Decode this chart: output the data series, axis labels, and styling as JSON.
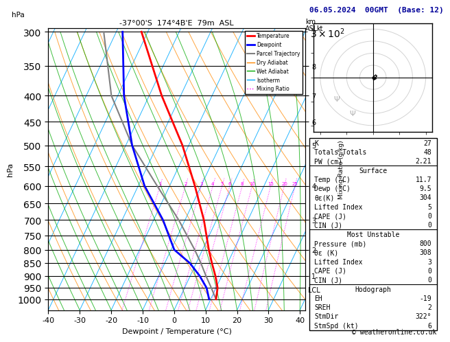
{
  "title_left": "-37°00'S  174°4B'E  79m  ASL",
  "title_right": "06.05.2024  00GMT  (Base: 12)",
  "xlabel": "Dewpoint / Temperature (°C)",
  "ylabel_left": "hPa",
  "pressure_ticks": [
    300,
    350,
    400,
    450,
    500,
    550,
    600,
    650,
    700,
    750,
    800,
    850,
    900,
    950,
    1000
  ],
  "xlim": [
    -40,
    40
  ],
  "temp_profile_p": [
    1000,
    950,
    900,
    850,
    800,
    700,
    600,
    500,
    400,
    300
  ],
  "temp_profile_T": [
    11.7,
    10.5,
    8.0,
    5.0,
    2.0,
    -4.0,
    -12.0,
    -22.0,
    -36.0,
    -52.0
  ],
  "dewp_profile_p": [
    1000,
    950,
    900,
    850,
    800,
    700,
    600,
    500,
    400,
    300
  ],
  "dewp_profile_T": [
    9.5,
    7.0,
    3.0,
    -2.0,
    -9.0,
    -17.0,
    -28.0,
    -38.0,
    -48.0,
    -58.0
  ],
  "parcel_p": [
    1000,
    950,
    900,
    850,
    800,
    700,
    600,
    500,
    400,
    300
  ],
  "parcel_T": [
    11.7,
    8.5,
    5.0,
    1.5,
    -2.5,
    -12.0,
    -24.0,
    -38.0,
    -52.0,
    -64.0
  ],
  "lcl_pressure": 960,
  "temp_color": "#ff0000",
  "dewp_color": "#0000ff",
  "parcel_color": "#808080",
  "dry_adiabat_color": "#ff8800",
  "wet_adiabat_color": "#00aa00",
  "isotherm_color": "#00aaff",
  "mixing_ratio_color": "#ff00ff",
  "km_ticks": [
    1,
    2,
    3,
    4,
    5,
    6,
    7,
    8
  ],
  "km_pressures": [
    900,
    800,
    700,
    600,
    500,
    450,
    400,
    350
  ],
  "mixing_ratio_values": [
    1,
    2,
    3,
    4,
    5,
    6,
    8,
    10,
    15,
    20,
    25
  ],
  "stats": {
    "K": 27,
    "Totals_Totals": 48,
    "PW_cm": 2.21,
    "Surface_Temp": 11.7,
    "Surface_Dewp": 9.5,
    "Surface_theta_e": 304,
    "Surface_LiftedIndex": 5,
    "Surface_CAPE": 0,
    "Surface_CIN": 0,
    "MU_Pressure": 800,
    "MU_theta_e": 308,
    "MU_LiftedIndex": 3,
    "MU_CAPE": 0,
    "MU_CIN": 0,
    "Hodo_EH": -19,
    "Hodo_SREH": 2,
    "Hodo_StmDir": "322°",
    "Hodo_StmSpd": 6
  },
  "copyright": "© weatheronline.co.uk"
}
